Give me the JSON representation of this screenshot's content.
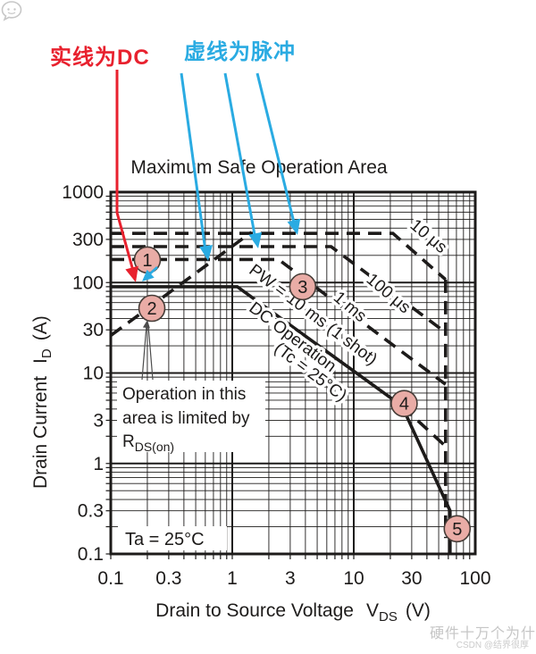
{
  "annotations": {
    "solid_dc_label": "实线为DC",
    "dashed_pulse_label": "虚线为脉冲",
    "red": "#e8212e",
    "cyan": "#2aabe2"
  },
  "chart_data": {
    "type": "line",
    "scale": "log-log",
    "grid": "log major+minor",
    "title": "Maximum Safe Operation Area",
    "xlabel": {
      "text": "Drain to Source Voltage",
      "symbol": "V",
      "sub": "DS",
      "unit": "(V)"
    },
    "ylabel": {
      "text": "Drain Current",
      "symbol": "I",
      "sub": "D",
      "unit": "(A)"
    },
    "xlim": [
      0.1,
      100
    ],
    "ylim": [
      0.1,
      1000
    ],
    "x_ticks": [
      {
        "v": 0.1,
        "label": "0.1"
      },
      {
        "v": 0.3,
        "label": "0.3"
      },
      {
        "v": 1,
        "label": "1"
      },
      {
        "v": 3,
        "label": "3"
      },
      {
        "v": 10,
        "label": "10"
      },
      {
        "v": 30,
        "label": "30"
      },
      {
        "v": 100,
        "label": "100"
      }
    ],
    "y_ticks": [
      {
        "v": 1000,
        "label": "1000"
      },
      {
        "v": 300,
        "label": "300"
      },
      {
        "v": 100,
        "label": "100"
      },
      {
        "v": 30,
        "label": "30"
      },
      {
        "v": 10,
        "label": "10"
      },
      {
        "v": 3,
        "label": "3"
      },
      {
        "v": 1,
        "label": "1"
      },
      {
        "v": 0.3,
        "label": "0.3"
      },
      {
        "v": 0.1,
        "label": "0.1"
      }
    ],
    "series": [
      {
        "name": "DC Operation (Tc = 25°C)",
        "style": "solid",
        "points": [
          [
            0.1,
            90
          ],
          [
            1.1,
            90
          ],
          [
            25,
            4.3
          ],
          [
            62,
            0.3
          ],
          [
            62,
            0.1
          ]
        ]
      },
      {
        "name": "PW = 10 ms (1 shot)",
        "style": "dashed",
        "points": [
          [
            25,
            4.3
          ],
          [
            57,
            1.55
          ]
        ]
      },
      {
        "name": "1 ms",
        "style": "dashed",
        "points": [
          [
            0.1,
            180
          ],
          [
            2.4,
            180
          ],
          [
            57,
            7.5
          ]
        ]
      },
      {
        "name": "100 μs",
        "style": "dashed",
        "points": [
          [
            0.1,
            250
          ],
          [
            6.5,
            250
          ],
          [
            57,
            28
          ]
        ]
      },
      {
        "name": "10 μs",
        "style": "dashed",
        "points": [
          [
            0.1,
            350
          ],
          [
            21,
            350
          ],
          [
            57,
            108
          ]
        ]
      },
      {
        "name": "RDS(on) limit line",
        "style": "dashed",
        "points": [
          [
            0.1,
            26
          ],
          [
            1.44,
            360
          ]
        ]
      },
      {
        "name": "VDSS boundary",
        "style": "dashed",
        "points": [
          [
            57,
            108
          ],
          [
            57,
            0.15
          ]
        ]
      }
    ],
    "markers": [
      {
        "label": "1",
        "v": 0.2,
        "i": 178
      },
      {
        "label": "2",
        "v": 0.218,
        "i": 52
      },
      {
        "label": "3",
        "v": 3.8,
        "i": 90
      },
      {
        "label": "4",
        "v": 26,
        "i": 4.6
      },
      {
        "label": "5",
        "v": 71,
        "i": 0.19
      }
    ],
    "marker_fill": "#e9aca6",
    "curve_labels": {
      "us10": "10 μs",
      "us100": "100 μs",
      "ms1": "1 ms",
      "pw": "PW = 10 ms (1 shot)",
      "dc1": "DC Operation",
      "dc2": "(Tc = 25°C)"
    },
    "notes": {
      "rdson1": "Operation in this",
      "rdson2": "area is limited by",
      "rdson3_main": "R",
      "rdson3_sub": "DS(on)",
      "ta": "Ta = 25°C"
    }
  },
  "watermark": {
    "brand": "硬件十万个为什么",
    "csdn": "CSDN @结界很厚"
  }
}
